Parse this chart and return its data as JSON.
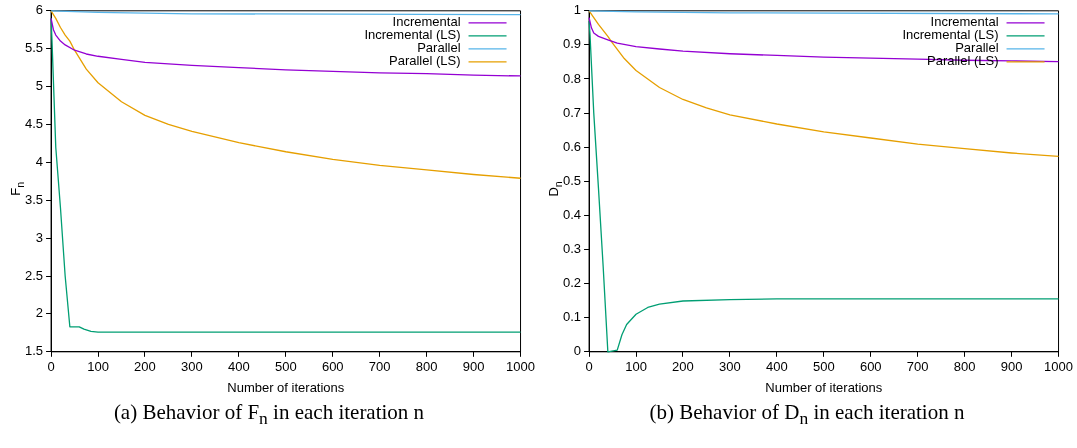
{
  "chart_data": [
    {
      "type": "line",
      "title": "(a) Behavior of F$_{n}$ in each iteration n",
      "xlabel": "Number of iterations",
      "ylabel": "F$_{n}$",
      "xlim": [
        0,
        1000
      ],
      "xticks": [
        0,
        100,
        200,
        300,
        400,
        500,
        600,
        700,
        800,
        900,
        1000
      ],
      "ylim": [
        1.5,
        6
      ],
      "yticks": [
        1.5,
        2,
        2.5,
        3,
        3.5,
        4,
        4.5,
        5,
        5.5,
        6
      ],
      "grid": false,
      "legend": "top right",
      "marker": "none",
      "line_style": "solid",
      "series": [
        {
          "name": "Incremental",
          "color": "#9400d3",
          "x": [
            0,
            5,
            10,
            20,
            30,
            50,
            75,
            100,
            150,
            200,
            300,
            400,
            500,
            600,
            700,
            800,
            900,
            1000
          ],
          "values": [
            5.9,
            5.75,
            5.68,
            5.6,
            5.55,
            5.48,
            5.43,
            5.4,
            5.36,
            5.32,
            5.28,
            5.25,
            5.22,
            5.2,
            5.18,
            5.17,
            5.15,
            5.14
          ]
        },
        {
          "name": "Incremental (LS)",
          "color": "#009e73",
          "x": [
            0,
            2,
            10,
            20,
            30,
            40,
            60,
            70,
            85,
            100,
            120,
            1000
          ],
          "values": [
            5.9,
            5.6,
            4.2,
            3.4,
            2.5,
            1.83,
            1.83,
            1.8,
            1.77,
            1.76,
            1.76,
            1.76
          ]
        },
        {
          "name": "Parallel",
          "color": "#56b4e9",
          "x": [
            0,
            100,
            300,
            1000
          ],
          "values": [
            6.0,
            5.98,
            5.96,
            5.95
          ]
        },
        {
          "name": "Parallel (LS)",
          "color": "#e69f00",
          "x": [
            0,
            10,
            20,
            30,
            40,
            50,
            75,
            100,
            150,
            200,
            250,
            300,
            400,
            500,
            600,
            700,
            800,
            900,
            1000
          ],
          "values": [
            6.0,
            5.9,
            5.78,
            5.68,
            5.6,
            5.48,
            5.23,
            5.05,
            4.8,
            4.62,
            4.5,
            4.41,
            4.26,
            4.14,
            4.04,
            3.96,
            3.9,
            3.84,
            3.79
          ]
        }
      ]
    },
    {
      "type": "line",
      "title": "(b) Behavior of D$_{n}$ in each iteration n",
      "xlabel": "Number of iterations",
      "ylabel": "D$_{n}$",
      "xlim": [
        0,
        1000
      ],
      "xticks": [
        0,
        100,
        200,
        300,
        400,
        500,
        600,
        700,
        800,
        900,
        1000
      ],
      "ylim": [
        0,
        1
      ],
      "yticks": [
        0,
        0.1,
        0.2,
        0.3,
        0.4,
        0.5,
        0.6,
        0.7,
        0.8,
        0.9,
        1
      ],
      "grid": false,
      "legend": "top right",
      "marker": "none",
      "line_style": "solid",
      "series": [
        {
          "name": "Incremental",
          "color": "#9400d3",
          "x": [
            0,
            5,
            10,
            20,
            40,
            60,
            100,
            150,
            200,
            300,
            400,
            500,
            600,
            700,
            800,
            900,
            1000
          ],
          "values": [
            0.98,
            0.95,
            0.935,
            0.925,
            0.915,
            0.905,
            0.895,
            0.888,
            0.882,
            0.874,
            0.869,
            0.864,
            0.861,
            0.858,
            0.855,
            0.853,
            0.851
          ]
        },
        {
          "name": "Incremental (LS)",
          "color": "#009e73",
          "x": [
            0,
            2,
            10,
            20,
            30,
            40,
            60,
            70,
            80,
            100,
            125,
            150,
            200,
            300,
            400,
            1000
          ],
          "values": [
            0.97,
            0.93,
            0.7,
            0.48,
            0.25,
            0.0,
            0.005,
            0.05,
            0.08,
            0.11,
            0.13,
            0.14,
            0.149,
            0.153,
            0.155,
            0.155
          ]
        },
        {
          "name": "Parallel",
          "color": "#56b4e9",
          "x": [
            0,
            100,
            300,
            1000
          ],
          "values": [
            1.0,
            0.997,
            0.994,
            0.991
          ]
        },
        {
          "name": "Parallel (LS)",
          "color": "#e69f00",
          "x": [
            0,
            20,
            40,
            50,
            75,
            100,
            150,
            200,
            250,
            300,
            400,
            500,
            600,
            700,
            800,
            900,
            1000
          ],
          "values": [
            1.0,
            0.96,
            0.925,
            0.905,
            0.86,
            0.825,
            0.775,
            0.74,
            0.715,
            0.695,
            0.668,
            0.645,
            0.627,
            0.609,
            0.596,
            0.583,
            0.573
          ]
        }
      ]
    }
  ]
}
